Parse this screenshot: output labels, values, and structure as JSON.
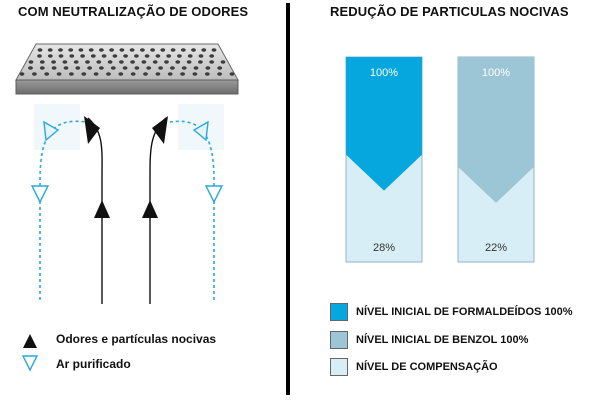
{
  "left": {
    "title": "COM NEUTRALIZAÇÃO DE ODORES",
    "key": [
      {
        "label": "Odores e partículas nocivas",
        "icon": "filled-triangle-icon"
      },
      {
        "label": "Ar purificado",
        "icon": "outline-triangle-icon"
      }
    ]
  },
  "right": {
    "title": "REDUÇÃO DE PARTICULAS NOCIVAS",
    "colors": {
      "formaldehyde": "#06a7de",
      "benzene": "#9cc6d6",
      "compensation": "#d8eef6"
    },
    "legend": [
      {
        "label": "NÍVEL INICIAL DE FORMALDEÍDOS 100%"
      },
      {
        "label": "NÍVEL INICIAL DE BENZOL 100%"
      },
      {
        "label": "NÍVEL DE COMPENSAÇÃO"
      }
    ]
  },
  "chart_data": {
    "type": "bar",
    "categories": [
      "Formaldeídos",
      "Benzol"
    ],
    "initial_labels": [
      "100%",
      "100%"
    ],
    "compensation_labels": [
      "28%",
      "22%"
    ],
    "initial_values": [
      100,
      100
    ],
    "compensation_values": [
      28,
      22
    ]
  }
}
